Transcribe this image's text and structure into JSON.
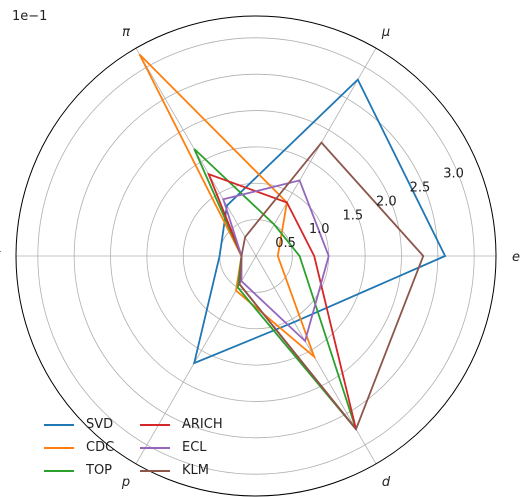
{
  "chart_data": {
    "type": "radar",
    "offset_label": "1e−1",
    "axes": [
      "e",
      "μ",
      "π",
      "K",
      "p",
      "d"
    ],
    "rticks": [
      0.5,
      1.0,
      1.5,
      2.0,
      2.5,
      3.0
    ],
    "rtick_labels": [
      "0.5",
      "1.0",
      "1.5",
      "2.0",
      "2.5",
      "3.0"
    ],
    "rlim": [
      0,
      3.3
    ],
    "grid": true,
    "legend_position": "lower-left",
    "series": [
      {
        "name": "SVD",
        "color": "#1f77b4",
        "values": [
          2.6,
          2.8,
          0.8,
          0.5,
          1.7,
          1.05
        ]
      },
      {
        "name": "CDC",
        "color": "#ff7f0e",
        "values": [
          0.3,
          0.85,
          3.2,
          0.2,
          0.55,
          1.6
        ]
      },
      {
        "name": "TOP",
        "color": "#2ca02c",
        "values": [
          0.6,
          0.5,
          1.7,
          0.2,
          0.5,
          2.75
        ]
      },
      {
        "name": "ARICH",
        "color": "#d62728",
        "values": [
          0.8,
          0.85,
          1.3,
          0.2,
          0.45,
          2.75
        ]
      },
      {
        "name": "ECL",
        "color": "#9467bd",
        "values": [
          1.0,
          1.2,
          0.9,
          0.2,
          0.4,
          1.35
        ]
      },
      {
        "name": "KLM",
        "color": "#8c564b",
        "values": [
          2.3,
          1.8,
          0.3,
          0.2,
          0.45,
          2.75
        ]
      }
    ]
  }
}
